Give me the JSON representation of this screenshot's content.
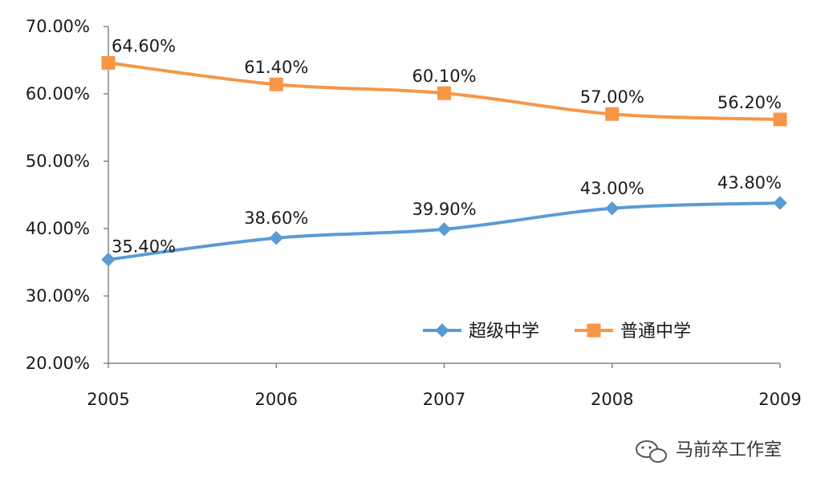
{
  "chart_data": {
    "type": "line",
    "x": [
      "2005",
      "2006",
      "2007",
      "2008",
      "2009"
    ],
    "ylim": [
      0.2,
      0.7
    ],
    "yticks": [
      "20.00%",
      "30.00%",
      "40.00%",
      "50.00%",
      "60.00%",
      "70.00%"
    ],
    "ytick_values": [
      0.2,
      0.3,
      0.4,
      0.5,
      0.6,
      0.7
    ],
    "grid": false,
    "legend_position": "bottom-right",
    "series": [
      {
        "name": "超级中学",
        "color": "#5B9BD5",
        "marker": "diamond",
        "values": [
          0.354,
          0.386,
          0.399,
          0.43,
          0.438
        ],
        "labels": [
          "35.40%",
          "38.60%",
          "39.90%",
          "43.00%",
          "43.80%"
        ]
      },
      {
        "name": "普通中学",
        "color": "#F79646",
        "marker": "square",
        "values": [
          0.646,
          0.614,
          0.601,
          0.57,
          0.562
        ],
        "labels": [
          "64.60%",
          "61.40%",
          "60.10%",
          "57.00%",
          "56.20%"
        ]
      }
    ]
  },
  "watermark": {
    "text": "马前卒工作室",
    "icon": "wechat-icon"
  }
}
